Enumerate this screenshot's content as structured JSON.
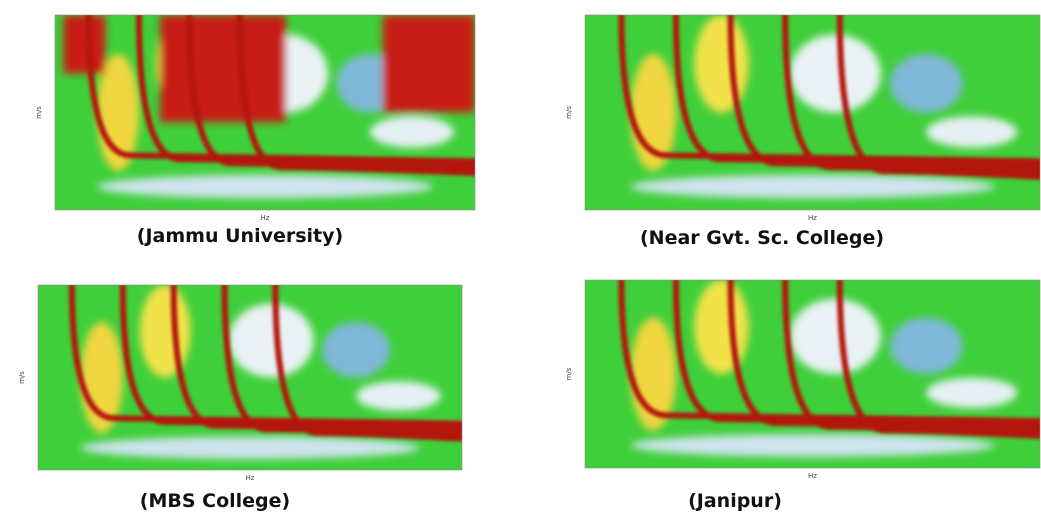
{
  "panels": [
    {
      "caption": "(Jammu University)",
      "y_label": "m/s",
      "x_label": "Hz"
    },
    {
      "caption": "(Near Gvt. Sc. College)",
      "y_label": "m/s",
      "x_label": "Hz"
    },
    {
      "caption": "(MBS College)",
      "y_label": "m/s",
      "x_label": "Hz"
    },
    {
      "caption": "(Janipur)",
      "y_label": "m/s",
      "x_label": "Hz"
    }
  ]
}
